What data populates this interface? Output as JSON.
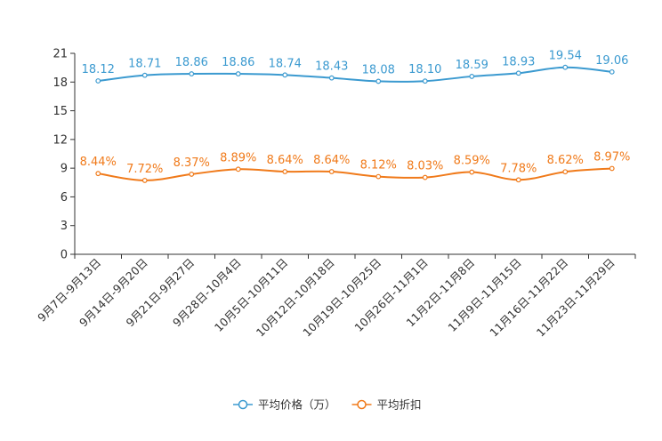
{
  "chart_data": {
    "type": "line",
    "title": "",
    "xlabel": "",
    "ylabel": "",
    "ylim": [
      0,
      21
    ],
    "yticks": [
      0,
      3,
      6,
      9,
      12,
      15,
      18,
      21
    ],
    "categories": [
      "9月7日-9月13日",
      "9月14日-9月20日",
      "9月21日-9月27日",
      "9月28日-10月4日",
      "10月5日-10月11日",
      "10月12日-10月18日",
      "10月19日-10月25日",
      "10月26日-11月1日",
      "11月2日-11月8日",
      "11月9日-11月15日",
      "11月16日-11月22日",
      "11月23日-11月29日"
    ],
    "series": [
      {
        "name": "平均价格（万）",
        "color": "#3b9ad0",
        "values": [
          18.12,
          18.71,
          18.86,
          18.86,
          18.74,
          18.43,
          18.08,
          18.1,
          18.59,
          18.93,
          19.54,
          19.06
        ],
        "labels": [
          "18.12",
          "18.71",
          "18.86",
          "18.86",
          "18.74",
          "18.43",
          "18.08",
          "18.10",
          "18.59",
          "18.93",
          "19.54",
          "19.06"
        ]
      },
      {
        "name": "平均折扣",
        "color": "#f07a1a",
        "values": [
          8.44,
          7.72,
          8.37,
          8.89,
          8.64,
          8.64,
          8.12,
          8.03,
          8.59,
          7.78,
          8.62,
          8.97
        ],
        "labels": [
          "8.44%",
          "7.72%",
          "8.37%",
          "8.89%",
          "8.64%",
          "8.64%",
          "8.12%",
          "8.03%",
          "8.59%",
          "7.78%",
          "8.62%",
          "8.97%"
        ]
      }
    ],
    "legend_position": "bottom-center",
    "grid": false
  }
}
